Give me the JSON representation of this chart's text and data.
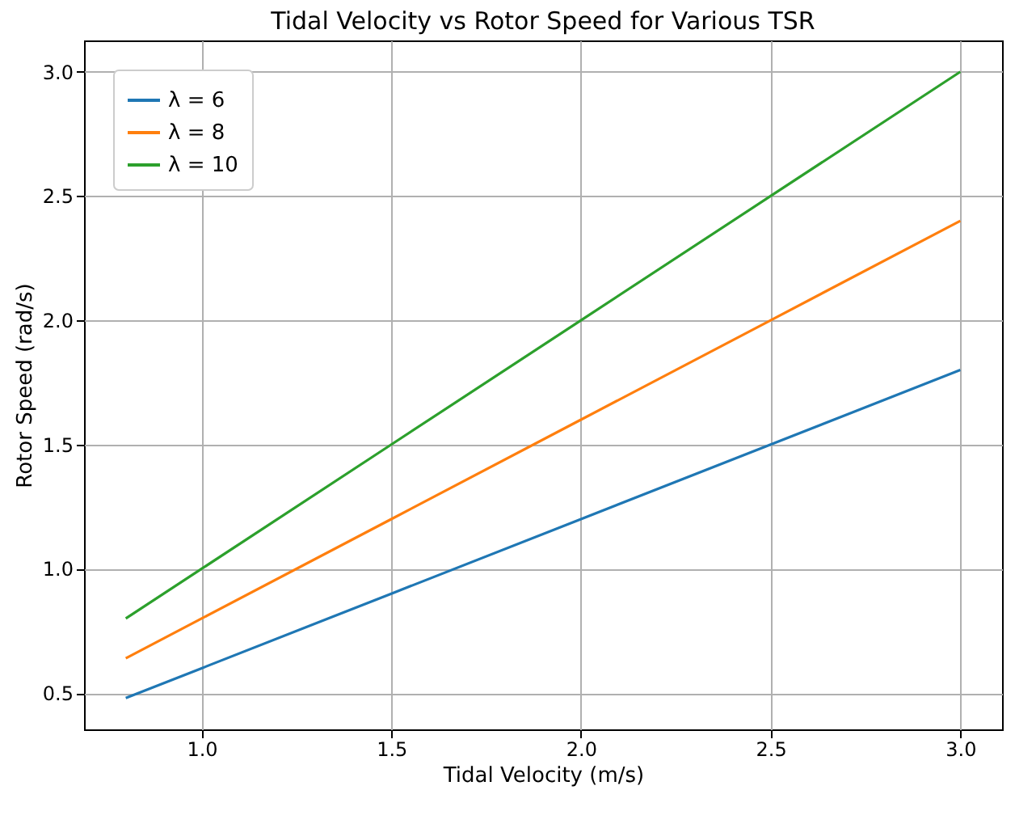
{
  "chart_data": {
    "type": "line",
    "title": "Tidal Velocity vs Rotor Speed for Various TSR",
    "xlabel": "Tidal Velocity (m/s)",
    "ylabel": "Rotor Speed (rad/s)",
    "x": [
      0.8,
      1.0,
      1.5,
      2.0,
      2.5,
      3.0
    ],
    "series": [
      {
        "name": "λ = 6",
        "color": "#1f77b4",
        "values": [
          0.48,
          0.6,
          0.9,
          1.2,
          1.5,
          1.8
        ]
      },
      {
        "name": "λ = 8",
        "color": "#ff7f0e",
        "values": [
          0.64,
          0.8,
          1.2,
          1.6,
          2.0,
          2.4
        ]
      },
      {
        "name": "λ = 10",
        "color": "#2ca02c",
        "values": [
          0.8,
          1.0,
          1.5,
          2.0,
          2.5,
          3.0
        ]
      }
    ],
    "xlim": [
      0.69,
      3.11
    ],
    "ylim": [
      0.354,
      3.126
    ],
    "xticks": [
      {
        "value": 1,
        "label": "1.0"
      },
      {
        "value": 1.5,
        "label": "1.5"
      },
      {
        "value": 2,
        "label": "2.0"
      },
      {
        "value": 2.5,
        "label": "2.5"
      },
      {
        "value": 3,
        "label": "3.0"
      }
    ],
    "yticks": [
      {
        "value": 0.5,
        "label": "0.5"
      },
      {
        "value": 1,
        "label": "1.0"
      },
      {
        "value": 1.5,
        "label": "1.5"
      },
      {
        "value": 2,
        "label": "2.0"
      },
      {
        "value": 2.5,
        "label": "2.5"
      },
      {
        "value": 3,
        "label": "3.0"
      }
    ],
    "grid": true,
    "legend": "top left"
  }
}
